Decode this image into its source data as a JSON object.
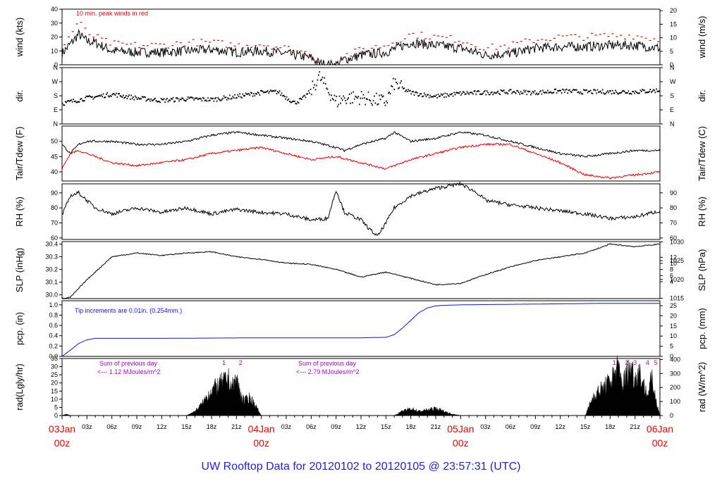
{
  "title": "UW Rooftop Data for 20120102  to  20120105 @ 23:57:31  (UTC)",
  "colors": {
    "black": "#000000",
    "red": "#ee0000",
    "blue": "#1111ee",
    "purple": "#aa00cc",
    "title": "#2222dd"
  },
  "x_axis": {
    "hour_ticks": [
      "03z",
      "06z",
      "09z",
      "12z",
      "15z",
      "18z",
      "21z",
      "03z",
      "06z",
      "09z",
      "12z",
      "15z",
      "18z",
      "21z",
      "03z",
      "06z",
      "09z",
      "12z",
      "15z",
      "18z",
      "21z"
    ],
    "date_labels": [
      {
        "day": "03Jan",
        "hour": "00z"
      },
      {
        "day": "04Jan",
        "hour": "00z"
      },
      {
        "day": "05Jan",
        "hour": "00z"
      },
      {
        "day": "06Jan",
        "hour": "00z"
      }
    ]
  },
  "chart_data": [
    {
      "type": "line",
      "panel": "wind",
      "ylabel_left": "wind (kts)",
      "ylabel_right": "wind (m/s)",
      "left_ticks": [
        "0",
        "10",
        "20",
        "30",
        "40"
      ],
      "right_ticks": [
        "0",
        "5",
        "10",
        "15",
        "20"
      ],
      "ylim": [
        0,
        40
      ],
      "annotation": "10 min. peak winds in red",
      "series": [
        {
          "x_hours": [
            0,
            2,
            3,
            4,
            6,
            9,
            12,
            15,
            18,
            21,
            24,
            27,
            30,
            31,
            32,
            33,
            34,
            35,
            36,
            39,
            42,
            45,
            48,
            51,
            54,
            57,
            60,
            63,
            66,
            69,
            72
          ],
          "values": [
            8,
            22,
            17,
            16,
            10,
            9,
            9,
            10,
            11,
            9,
            10,
            8,
            5,
            1,
            0,
            0,
            4,
            5,
            7,
            9,
            16,
            14,
            12,
            7,
            8,
            12,
            13,
            13,
            14,
            14,
            12
          ]
        },
        {
          "x_hours": [
            0,
            2,
            3,
            4,
            6,
            9,
            12,
            15,
            18,
            21,
            24,
            27,
            30,
            31,
            32,
            33,
            34,
            35,
            36,
            39,
            42,
            45,
            48,
            51,
            54,
            57,
            60,
            63,
            66,
            69,
            72
          ],
          "values": [
            12,
            31,
            23,
            20,
            15,
            14,
            14,
            16,
            16,
            14,
            15,
            12,
            8,
            1,
            0,
            0,
            7,
            8,
            11,
            14,
            22,
            20,
            18,
            12,
            14,
            18,
            20,
            20,
            21,
            21,
            18
          ]
        }
      ]
    },
    {
      "type": "scatter",
      "panel": "dir",
      "ylabel_left": "dir.",
      "ylabel_right": "dir.",
      "left_ticks": [
        "N",
        "E",
        "S",
        "W",
        "N"
      ],
      "right_ticks": [
        "N",
        "E",
        "S",
        "W",
        "N"
      ],
      "ylim": [
        0,
        360
      ],
      "x_hours": [
        0,
        3,
        6,
        9,
        12,
        15,
        18,
        21,
        24,
        26,
        27,
        28,
        29,
        30,
        31,
        32,
        33,
        34,
        36,
        39,
        40,
        41,
        42,
        45,
        48,
        51,
        54,
        57,
        60,
        63,
        66,
        69,
        72
      ],
      "values": [
        130,
        165,
        190,
        165,
        150,
        160,
        155,
        175,
        200,
        205,
        170,
        135,
        160,
        215,
        300,
        220,
        140,
        165,
        170,
        140,
        260,
        225,
        200,
        175,
        195,
        200,
        205,
        200,
        210,
        205,
        205,
        205,
        215
      ]
    },
    {
      "type": "line",
      "panel": "temp",
      "ylabel_left": "Tair/Tdew (F)",
      "ylabel_right": "Tair/Tdew (C)",
      "left_ticks": [
        "40",
        "45",
        "50"
      ],
      "right_ticks": [
        "4",
        "6",
        "8",
        "10",
        "12"
      ],
      "ylim": [
        37,
        55
      ],
      "series": [
        {
          "name": "Tair",
          "x_hours": [
            0,
            1,
            2,
            3,
            6,
            9,
            12,
            15,
            18,
            21,
            24,
            27,
            30,
            33,
            34,
            36,
            39,
            40,
            42,
            45,
            48,
            51,
            54,
            57,
            60,
            63,
            66,
            69,
            72
          ],
          "values": [
            49,
            46,
            49,
            50,
            50,
            49,
            49,
            50,
            52,
            53,
            52,
            51,
            50,
            48,
            47,
            49,
            51,
            53,
            50,
            51,
            53,
            52,
            50,
            48,
            46,
            45,
            46,
            47,
            47
          ]
        },
        {
          "name": "Tdew",
          "x_hours": [
            0,
            1,
            2,
            3,
            6,
            9,
            12,
            15,
            18,
            21,
            24,
            27,
            30,
            33,
            36,
            39,
            42,
            45,
            48,
            51,
            54,
            57,
            60,
            63,
            66,
            69,
            72
          ],
          "values": [
            41,
            46,
            47,
            46,
            43,
            42,
            43,
            44,
            46,
            47,
            48,
            46,
            44,
            45,
            43,
            41,
            44,
            46,
            48,
            49,
            49,
            46,
            43,
            39,
            38,
            39,
            40
          ]
        }
      ]
    },
    {
      "type": "line",
      "panel": "rh",
      "ylabel_left": "RH (%)",
      "ylabel_right": "RH (%)",
      "left_ticks": [
        "60",
        "70",
        "80",
        "90"
      ],
      "right_ticks": [
        "60",
        "70",
        "80",
        "90"
      ],
      "ylim": [
        59,
        96
      ],
      "x_hours": [
        0,
        1,
        2,
        3,
        4,
        6,
        9,
        12,
        15,
        18,
        21,
        24,
        27,
        30,
        32,
        33,
        34,
        36,
        37,
        38,
        39,
        40,
        42,
        45,
        48,
        50,
        51,
        54,
        57,
        60,
        63,
        66,
        69,
        72
      ],
      "values": [
        75,
        88,
        90,
        85,
        80,
        76,
        80,
        77,
        80,
        76,
        79,
        77,
        76,
        72,
        73,
        92,
        77,
        72,
        66,
        61,
        70,
        80,
        88,
        93,
        96,
        90,
        85,
        82,
        80,
        78,
        76,
        73,
        74,
        78
      ]
    },
    {
      "type": "line",
      "panel": "slp",
      "ylabel_left": "SLP (inHg)",
      "ylabel_right": "SLP (hPa)",
      "left_ticks": [
        "30.0",
        "30.1",
        "30.2",
        "30.3",
        "30.4"
      ],
      "right_ticks": [
        "1015",
        "1020",
        "1025",
        "1030"
      ],
      "ylim": [
        29.97,
        30.42
      ],
      "x_hours": [
        0,
        1,
        3,
        6,
        9,
        12,
        15,
        18,
        21,
        24,
        27,
        30,
        33,
        36,
        39,
        42,
        45,
        48,
        51,
        54,
        57,
        60,
        63,
        66,
        69,
        72
      ],
      "values": [
        29.97,
        29.98,
        30.12,
        30.3,
        30.33,
        30.31,
        30.33,
        30.34,
        30.3,
        30.28,
        30.25,
        30.24,
        30.2,
        30.14,
        30.18,
        30.13,
        30.08,
        30.09,
        30.16,
        30.22,
        30.27,
        30.3,
        30.33,
        30.4,
        30.38,
        30.4
      ]
    },
    {
      "type": "line",
      "panel": "pcp",
      "ylabel_left": "pcp. (in)",
      "ylabel_right": "pcp. (mm)",
      "left_ticks": [
        "0.0",
        "0.2",
        "0.4",
        "0.6",
        "0.8",
        "1.0"
      ],
      "right_ticks": [
        "0",
        "5",
        "10",
        "15",
        "20",
        "25"
      ],
      "ylim": [
        0,
        1.08
      ],
      "annotation": "Tip increments are 0.01in. (0.254mm.)",
      "x_hours": [
        0,
        1,
        2,
        3,
        4,
        12,
        24,
        36,
        39,
        40,
        41,
        42,
        43,
        44,
        45,
        46,
        48,
        54,
        60,
        66,
        72
      ],
      "values": [
        0,
        0.12,
        0.25,
        0.32,
        0.35,
        0.35,
        0.36,
        0.36,
        0.37,
        0.42,
        0.55,
        0.7,
        0.85,
        0.94,
        0.98,
        0.99,
        1.0,
        1.01,
        1.02,
        1.03,
        1.03
      ]
    },
    {
      "type": "area",
      "panel": "rad",
      "ylabel_left": "rad(Lgly/hr)",
      "ylabel_right": "rad (W/m^2)",
      "left_ticks": [
        "0",
        "5",
        "10",
        "15",
        "20",
        "25",
        "30",
        "35"
      ],
      "right_ticks": [
        "0",
        "100",
        "200",
        "300",
        "400"
      ],
      "ylim": [
        0,
        35
      ],
      "x_hours": [
        0,
        0.5,
        1,
        15,
        16,
        17,
        17.5,
        18,
        19,
        20,
        20.5,
        21,
        21.5,
        22,
        22.5,
        23,
        24,
        36,
        40,
        41,
        42,
        43,
        44,
        45,
        46,
        47,
        48,
        60,
        63,
        64,
        65,
        66,
        66.5,
        67,
        67.5,
        68,
        68.5,
        69,
        69.5,
        70,
        70.5,
        71,
        71.5,
        72
      ],
      "values": [
        0,
        1,
        0,
        0,
        3,
        9,
        14,
        18,
        22,
        26,
        20,
        26,
        15,
        10,
        13,
        10,
        0,
        0,
        0,
        3,
        5,
        3,
        4,
        5,
        3,
        1,
        0,
        0,
        0,
        14,
        19,
        24,
        30,
        34,
        22,
        30,
        35,
        26,
        32,
        22,
        14,
        26,
        12,
        0
      ],
      "annotations": [
        {
          "text": "Sum of previous day",
          "line2": "<--- 1.12 MJoules/m^2"
        },
        {
          "text": "Sum of previous day",
          "line2": "<--- 2.79 MJoules/m^2"
        }
      ],
      "peak_labels": [
        "1",
        "2",
        "1",
        "2",
        "3",
        "4",
        "5"
      ]
    }
  ]
}
